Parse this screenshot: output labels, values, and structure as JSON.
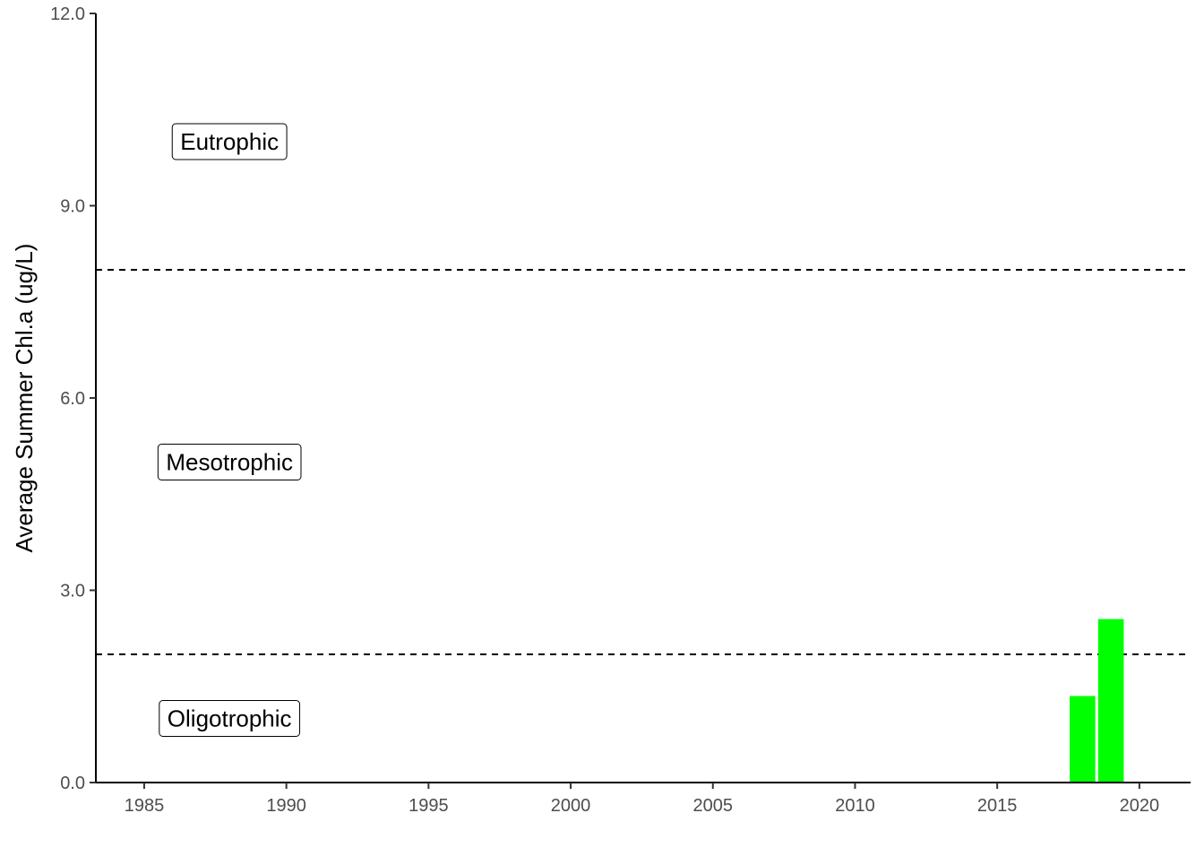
{
  "chart_data": {
    "type": "bar",
    "title": "",
    "xlabel": "",
    "ylabel": "Average Summer Chl.a (ug/L)",
    "xlim": [
      1983.3,
      2021.8
    ],
    "ylim": [
      0,
      12
    ],
    "x_ticks": [
      1985,
      1990,
      1995,
      2000,
      2005,
      2010,
      2015,
      2020
    ],
    "y_ticks": [
      0,
      3,
      6,
      9,
      12
    ],
    "y_tick_labels": [
      "0.0",
      "3.0",
      "6.0",
      "9.0",
      "12.0"
    ],
    "x_tick_labels": [
      "1985",
      "1990",
      "1995",
      "2000",
      "2005",
      "2010",
      "2015",
      "2020"
    ],
    "series": [
      {
        "x": [
          2018,
          2019
        ],
        "values": [
          1.35,
          2.55
        ],
        "color": "#00ff00"
      }
    ],
    "bar_width_years": 0.9,
    "reference_lines": [
      {
        "y": 2,
        "style": "dashed",
        "color": "#000000"
      },
      {
        "y": 8,
        "style": "dashed",
        "color": "#000000"
      }
    ],
    "annotations": [
      {
        "text": "Eutrophic",
        "x": 1988,
        "y": 10
      },
      {
        "text": "Mesotrophic",
        "x": 1988,
        "y": 5
      },
      {
        "text": "Oligotrophic",
        "x": 1988,
        "y": 1
      }
    ],
    "grid": false,
    "legend": "none"
  }
}
